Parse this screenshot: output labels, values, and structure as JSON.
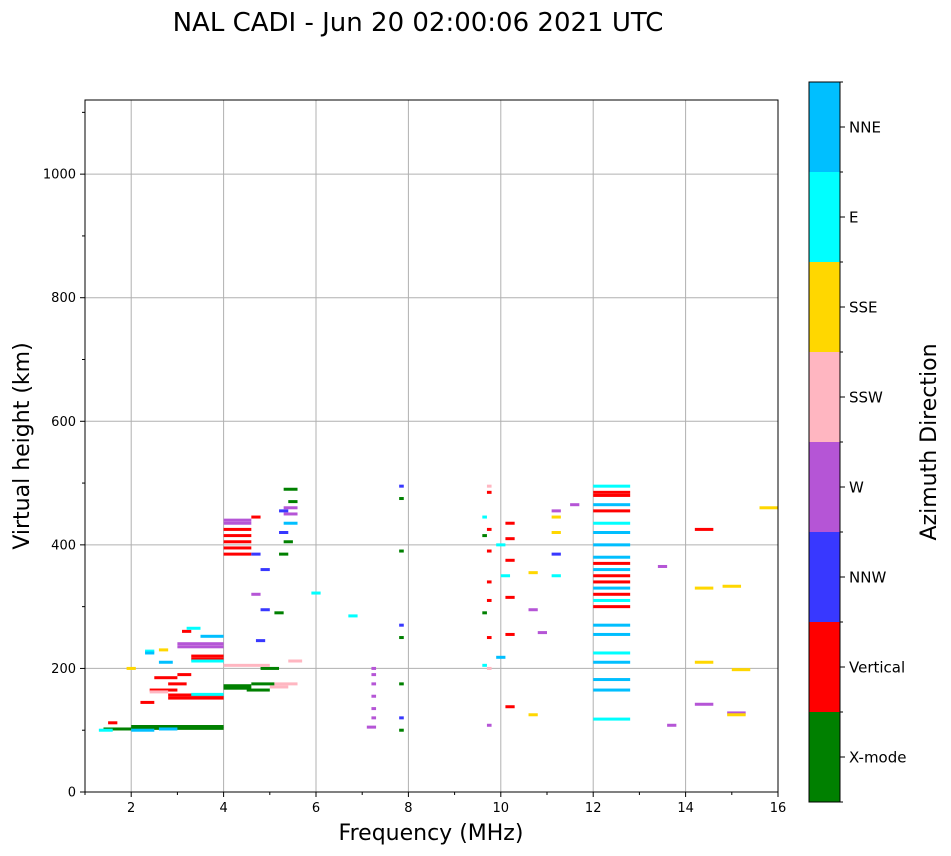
{
  "chart_data": {
    "type": "scatter",
    "title": "NAL CADI - Jun 20 02:00:06 2021 UTC",
    "xlabel": "Frequency (MHz)",
    "ylabel": "Virtual height (km)",
    "xlim": [
      1.0,
      16.0
    ],
    "ylim": [
      0,
      1120
    ],
    "xticks": [
      2,
      4,
      6,
      8,
      10,
      12,
      14,
      16
    ],
    "yticks": [
      0,
      200,
      400,
      600,
      800,
      1000
    ],
    "grid": true,
    "colorbar": {
      "label": "Azimuth Direction",
      "categories": [
        "X-mode",
        "Vertical",
        "NNW",
        "W",
        "SSW",
        "SSE",
        "E",
        "NNE"
      ],
      "colors": {
        "X-mode": "#008000",
        "Vertical": "#ff0000",
        "NNW": "#3838ff",
        "W": "#b555d6",
        "SSW": "#ffb6c1",
        "SSE": "#ffd700",
        "E": "#00ffff",
        "NNE": "#00bfff"
      }
    },
    "series": [
      {
        "name": "X-mode",
        "segments": [
          [
            1.4,
            2.0,
            102
          ],
          [
            2.0,
            4.0,
            103
          ],
          [
            2.0,
            4.0,
            106
          ],
          [
            4.0,
            4.6,
            168
          ],
          [
            4.0,
            4.6,
            172
          ],
          [
            4.5,
            5.0,
            165
          ],
          [
            4.6,
            5.1,
            175
          ],
          [
            4.8,
            5.2,
            200
          ],
          [
            5.1,
            5.3,
            290
          ],
          [
            5.2,
            5.4,
            385
          ],
          [
            5.3,
            5.5,
            405
          ],
          [
            5.4,
            5.6,
            470
          ],
          [
            5.3,
            5.6,
            490
          ],
          [
            7.8,
            7.9,
            100
          ],
          [
            7.8,
            7.9,
            175
          ],
          [
            7.8,
            7.9,
            250
          ],
          [
            7.8,
            7.9,
            390
          ],
          [
            7.8,
            7.9,
            475
          ],
          [
            9.6,
            9.7,
            290
          ],
          [
            9.6,
            9.7,
            415
          ]
        ]
      },
      {
        "name": "Vertical",
        "segments": [
          [
            1.5,
            1.7,
            112
          ],
          [
            2.2,
            2.5,
            145
          ],
          [
            2.4,
            3.0,
            165
          ],
          [
            2.5,
            3.0,
            185
          ],
          [
            3.0,
            3.3,
            190
          ],
          [
            2.8,
            3.2,
            175
          ],
          [
            2.8,
            4.0,
            152
          ],
          [
            2.8,
            4.0,
            157
          ],
          [
            3.1,
            3.3,
            260
          ],
          [
            3.3,
            4.0,
            215
          ],
          [
            3.3,
            4.0,
            220
          ],
          [
            4.0,
            4.6,
            385
          ],
          [
            4.0,
            4.6,
            395
          ],
          [
            4.0,
            4.6,
            405
          ],
          [
            4.0,
            4.6,
            415
          ],
          [
            4.0,
            4.6,
            425
          ],
          [
            4.6,
            4.8,
            445
          ],
          [
            12.0,
            12.8,
            300
          ],
          [
            12.0,
            12.8,
            320
          ],
          [
            12.0,
            12.8,
            340
          ],
          [
            12.0,
            12.8,
            350
          ],
          [
            12.0,
            12.8,
            370
          ],
          [
            12.0,
            12.8,
            455
          ],
          [
            12.0,
            12.8,
            480
          ],
          [
            12.0,
            12.8,
            485
          ],
          [
            10.1,
            10.3,
            435
          ],
          [
            10.1,
            10.3,
            410
          ],
          [
            10.1,
            10.3,
            375
          ],
          [
            10.1,
            10.3,
            315
          ],
          [
            10.1,
            10.3,
            255
          ],
          [
            10.1,
            10.3,
            138
          ],
          [
            9.7,
            9.8,
            250
          ],
          [
            9.7,
            9.8,
            310
          ],
          [
            9.7,
            9.8,
            340
          ],
          [
            9.7,
            9.8,
            390
          ],
          [
            9.7,
            9.8,
            425
          ],
          [
            9.7,
            9.8,
            485
          ],
          [
            14.2,
            14.6,
            425
          ]
        ]
      },
      {
        "name": "NNW",
        "segments": [
          [
            4.6,
            4.8,
            385
          ],
          [
            4.8,
            5.0,
            360
          ],
          [
            4.8,
            5.0,
            295
          ],
          [
            4.7,
            4.9,
            245
          ],
          [
            5.2,
            5.4,
            420
          ],
          [
            5.2,
            5.4,
            455
          ],
          [
            7.8,
            7.9,
            120
          ],
          [
            7.8,
            7.9,
            270
          ],
          [
            7.8,
            7.9,
            495
          ],
          [
            11.1,
            11.3,
            385
          ]
        ]
      },
      {
        "name": "W",
        "segments": [
          [
            3.0,
            4.0,
            240
          ],
          [
            3.0,
            4.0,
            235
          ],
          [
            4.0,
            4.6,
            435
          ],
          [
            4.0,
            4.6,
            440
          ],
          [
            5.3,
            5.6,
            460
          ],
          [
            5.3,
            5.6,
            450
          ],
          [
            4.6,
            4.8,
            320
          ],
          [
            7.1,
            7.3,
            105
          ],
          [
            7.2,
            7.3,
            120
          ],
          [
            7.2,
            7.3,
            135
          ],
          [
            7.2,
            7.3,
            155
          ],
          [
            7.2,
            7.3,
            175
          ],
          [
            7.2,
            7.3,
            190
          ],
          [
            7.2,
            7.3,
            200
          ],
          [
            10.8,
            11.0,
            258
          ],
          [
            10.6,
            10.8,
            295
          ],
          [
            11.1,
            11.3,
            455
          ],
          [
            11.5,
            11.7,
            465
          ],
          [
            13.4,
            13.6,
            365
          ],
          [
            13.6,
            13.8,
            108
          ],
          [
            14.2,
            14.6,
            142
          ],
          [
            14.9,
            15.3,
            128
          ],
          [
            9.7,
            9.8,
            108
          ]
        ]
      },
      {
        "name": "SSW",
        "segments": [
          [
            4.0,
            5.0,
            205
          ],
          [
            5.1,
            5.6,
            175
          ],
          [
            5.0,
            5.4,
            170
          ],
          [
            5.4,
            5.7,
            212
          ],
          [
            2.4,
            2.8,
            162
          ],
          [
            9.7,
            9.8,
            200
          ],
          [
            9.7,
            9.8,
            495
          ]
        ]
      },
      {
        "name": "SSE",
        "segments": [
          [
            1.9,
            2.1,
            200
          ],
          [
            2.6,
            2.8,
            230
          ],
          [
            10.6,
            10.8,
            355
          ],
          [
            11.1,
            11.3,
            445
          ],
          [
            11.1,
            11.3,
            420
          ],
          [
            14.2,
            14.6,
            210
          ],
          [
            14.2,
            14.6,
            330
          ],
          [
            14.8,
            15.2,
            333
          ],
          [
            14.9,
            15.3,
            125
          ],
          [
            15.0,
            15.4,
            198
          ],
          [
            15.6,
            16.0,
            460
          ],
          [
            10.6,
            10.8,
            125
          ]
        ]
      },
      {
        "name": "E",
        "segments": [
          [
            1.3,
            1.6,
            100
          ],
          [
            2.3,
            2.5,
            228
          ],
          [
            3.3,
            4.0,
            212
          ],
          [
            3.3,
            4.0,
            158
          ],
          [
            3.2,
            3.5,
            265
          ],
          [
            12.0,
            12.8,
            118
          ],
          [
            12.0,
            12.8,
            225
          ],
          [
            12.0,
            12.8,
            310
          ],
          [
            12.0,
            12.8,
            435
          ],
          [
            12.0,
            12.8,
            495
          ],
          [
            10.0,
            10.2,
            350
          ],
          [
            11.1,
            11.3,
            350
          ],
          [
            9.9,
            10.1,
            400
          ],
          [
            5.9,
            6.1,
            322
          ],
          [
            6.7,
            6.9,
            285
          ],
          [
            9.6,
            9.7,
            205
          ],
          [
            9.6,
            9.7,
            445
          ]
        ]
      },
      {
        "name": "NNE",
        "segments": [
          [
            12.0,
            12.8,
            165
          ],
          [
            12.0,
            12.8,
            182
          ],
          [
            12.0,
            12.8,
            210
          ],
          [
            12.0,
            12.8,
            255
          ],
          [
            12.0,
            12.8,
            270
          ],
          [
            12.0,
            12.8,
            330
          ],
          [
            12.0,
            12.8,
            360
          ],
          [
            12.0,
            12.8,
            380
          ],
          [
            12.0,
            12.8,
            400
          ],
          [
            12.0,
            12.8,
            420
          ],
          [
            12.0,
            12.8,
            465
          ],
          [
            2.3,
            2.5,
            225
          ],
          [
            2.6,
            2.9,
            210
          ],
          [
            3.5,
            4.0,
            252
          ],
          [
            5.3,
            5.6,
            435
          ],
          [
            9.9,
            10.1,
            218
          ],
          [
            2.0,
            2.5,
            100
          ],
          [
            2.6,
            3.0,
            102
          ]
        ]
      }
    ]
  }
}
